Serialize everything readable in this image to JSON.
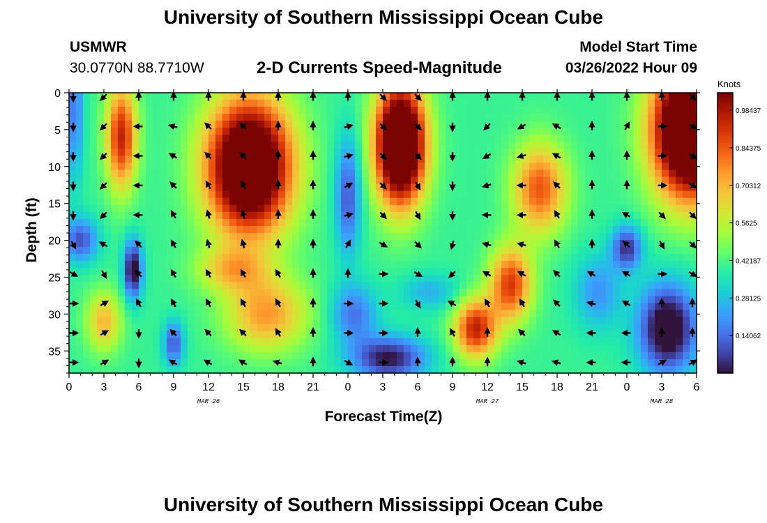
{
  "header": {
    "title": "University of Southern Mississippi Ocean Cube",
    "station_id": "USMWR",
    "station_coords": "30.0770N  88.7710W",
    "subtitle": "2-D Currents Speed-Magnitude",
    "model_label": "Model Start Time",
    "model_time": "03/26/2022 Hour 09"
  },
  "footer": {
    "title": "University of Southern Mississippi Ocean Cube"
  },
  "chart_data": {
    "type": "heatmap",
    "title": "2-D Currents Speed-Magnitude",
    "xlabel": "Forecast Time(Z)",
    "ylabel": "Depth (ft)",
    "xlim": [
      0,
      54
    ],
    "ylim": [
      0,
      38
    ],
    "x_ticks": [
      0,
      3,
      6,
      9,
      12,
      15,
      18,
      21,
      24,
      27,
      30,
      33,
      36,
      39,
      42,
      45,
      48,
      51,
      54
    ],
    "x_tick_labels": [
      "0",
      "3",
      "6",
      "9",
      "12",
      "15",
      "18",
      "21",
      "0",
      "3",
      "6",
      "9",
      "12",
      "15",
      "18",
      "21",
      "0",
      "3",
      "6"
    ],
    "y_ticks": [
      0,
      5,
      10,
      15,
      20,
      25,
      30,
      35
    ],
    "y_tick_labels": [
      "0",
      "5",
      "10",
      "15",
      "20",
      "25",
      "30",
      "35"
    ],
    "date_labels": [
      {
        "text": "MAR 26",
        "hour": 12
      },
      {
        "text": "MAR 27",
        "hour": 36
      },
      {
        "text": "MAR 28",
        "hour": 51
      }
    ],
    "colorbar": {
      "title": "Knots",
      "range": [
        0.0,
        1.05
      ],
      "ticks": [
        0.98437,
        0.84375,
        0.70312,
        0.5625,
        0.42187,
        0.28125,
        0.14062
      ],
      "tick_labels": [
        "0.98437",
        "0.84375",
        "0.70312",
        "0.5625",
        "0.42187",
        "0.28125",
        "0.14062"
      ],
      "colors": [
        "#30123b",
        "#4145ab",
        "#4675ed",
        "#39a2fc",
        "#1bcfd4",
        "#24eca6",
        "#61fc6c",
        "#a4fc3b",
        "#d1e834",
        "#f3c63a",
        "#fe9b2d",
        "#f36315",
        "#d93806",
        "#b11901",
        "#7a0402"
      ]
    },
    "speed_blobs": [
      {
        "hour": 15.5,
        "depth": 10,
        "sx": 3.6,
        "sy": 9,
        "v": 1.0
      },
      {
        "hour": 4.5,
        "depth": 6,
        "sx": 1.3,
        "sy": 7,
        "v": 0.55
      },
      {
        "hour": 28.5,
        "depth": 7,
        "sx": 2.1,
        "sy": 8,
        "v": 1.08
      },
      {
        "hour": 53.5,
        "depth": 5,
        "sx": 3.2,
        "sy": 9,
        "v": 1.15
      },
      {
        "hour": 40.5,
        "depth": 13,
        "sx": 2.3,
        "sy": 6,
        "v": 0.45
      },
      {
        "hour": 38.0,
        "depth": 26,
        "sx": 1.8,
        "sy": 5,
        "v": 0.5
      },
      {
        "hour": 35.0,
        "depth": 32,
        "sx": 1.8,
        "sy": 4,
        "v": 0.55
      },
      {
        "hour": 17.0,
        "depth": 30,
        "sx": 3.5,
        "sy": 5,
        "v": 0.35
      },
      {
        "hour": 14.0,
        "depth": 24,
        "sx": 3.0,
        "sy": 3,
        "v": 0.25
      },
      {
        "hour": 3.0,
        "depth": 31,
        "sx": 1.5,
        "sy": 4,
        "v": 0.3
      },
      {
        "hour": 0.5,
        "depth": 2,
        "sx": 0.7,
        "sy": 10,
        "v": -0.25
      },
      {
        "hour": 1.0,
        "depth": 20,
        "sx": 1.5,
        "sy": 3,
        "v": -0.3
      },
      {
        "hour": 5.5,
        "depth": 24,
        "sx": 0.8,
        "sy": 4,
        "v": -0.45
      },
      {
        "hour": 9.0,
        "depth": 34,
        "sx": 0.9,
        "sy": 3,
        "v": -0.3
      },
      {
        "hour": 24.0,
        "depth": 14,
        "sx": 1.1,
        "sy": 8,
        "v": -0.3
      },
      {
        "hour": 27.5,
        "depth": 36,
        "sx": 3.2,
        "sy": 3,
        "v": -0.4
      },
      {
        "hour": 24.5,
        "depth": 30,
        "sx": 2.0,
        "sy": 4,
        "v": -0.25
      },
      {
        "hour": 51.5,
        "depth": 32,
        "sx": 2.5,
        "sy": 6,
        "v": -0.5
      },
      {
        "hour": 48.0,
        "depth": 21,
        "sx": 1.3,
        "sy": 3,
        "v": -0.35
      },
      {
        "hour": 45.5,
        "depth": 27,
        "sx": 2.0,
        "sy": 5,
        "v": -0.2
      },
      {
        "hour": 31.0,
        "depth": 27,
        "sx": 2.5,
        "sy": 2.5,
        "v": -0.15
      }
    ],
    "current_vectors": [
      {
        "depth": 0,
        "dirs": [
          180,
          225,
          0,
          0,
          0,
          0,
          0,
          0,
          0,
          135,
          135,
          0,
          0,
          0,
          0,
          0,
          0,
          0,
          135
        ]
      },
      {
        "depth": 4,
        "dirs": [
          180,
          225,
          270,
          285,
          315,
          315,
          0,
          0,
          75,
          135,
          135,
          180,
          225,
          240,
          300,
          0,
          30,
          90,
          120
        ]
      },
      {
        "depth": 8,
        "dirs": [
          180,
          225,
          270,
          300,
          315,
          315,
          0,
          0,
          75,
          135,
          135,
          180,
          240,
          255,
          300,
          0,
          0,
          90,
          120
        ]
      },
      {
        "depth": 12,
        "dirs": [
          180,
          225,
          270,
          315,
          330,
          330,
          0,
          0,
          60,
          135,
          150,
          180,
          255,
          270,
          315,
          0,
          0,
          90,
          120
        ]
      },
      {
        "depth": 16,
        "dirs": [
          180,
          225,
          270,
          330,
          345,
          345,
          0,
          0,
          75,
          135,
          150,
          180,
          270,
          270,
          330,
          0,
          300,
          135,
          135
        ]
      },
      {
        "depth": 20,
        "dirs": [
          150,
          300,
          315,
          330,
          345,
          345,
          0,
          0,
          30,
          120,
          135,
          195,
          285,
          285,
          330,
          0,
          315,
          150,
          135
        ]
      },
      {
        "depth": 24,
        "dirs": [
          120,
          150,
          315,
          330,
          330,
          330,
          330,
          0,
          0,
          90,
          120,
          225,
          300,
          300,
          315,
          300,
          300,
          90,
          120
        ]
      },
      {
        "depth": 28,
        "dirs": [
          90,
          60,
          330,
          330,
          330,
          330,
          330,
          0,
          90,
          90,
          150,
          300,
          330,
          330,
          315,
          285,
          300,
          0,
          0
        ]
      },
      {
        "depth": 32,
        "dirs": [
          90,
          60,
          180,
          315,
          315,
          315,
          330,
          0,
          90,
          90,
          0,
          330,
          0,
          315,
          300,
          270,
          270,
          0,
          0
        ]
      },
      {
        "depth": 36,
        "dirs": [
          90,
          60,
          180,
          300,
          300,
          300,
          285,
          0,
          120,
          90,
          0,
          0,
          0,
          285,
          285,
          270,
          270,
          60,
          60
        ]
      }
    ]
  }
}
